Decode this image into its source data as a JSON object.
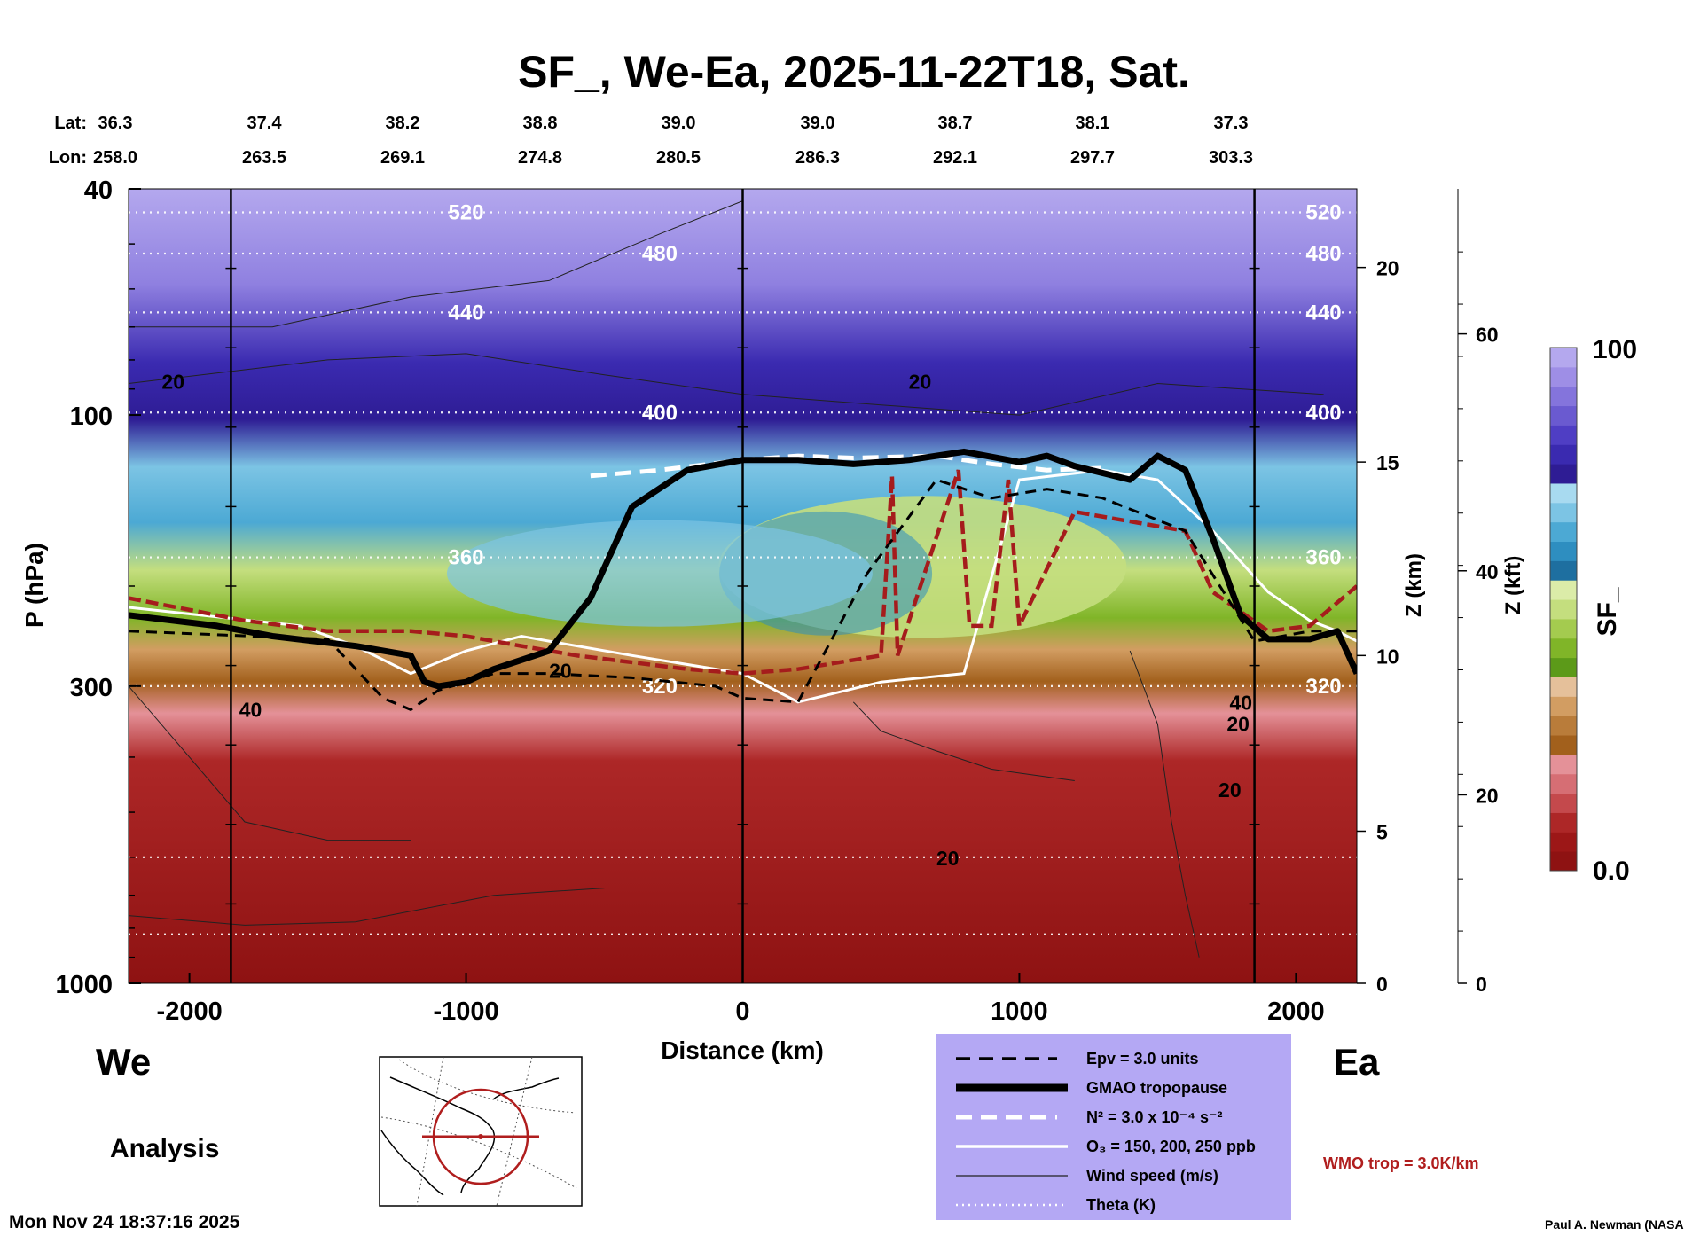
{
  "chart_data": {
    "type": "heatmap",
    "title": "SF_, We-Ea, 2025-11-22T18, Sat.",
    "xlabel": "Distance (km)",
    "ylabel": "P (hPa)",
    "ylabel_right_km": "Z (km)",
    "ylabel_right_kft": "Z (kft)",
    "xlim": [
      -2220,
      2220
    ],
    "ylim": [
      1000,
      40
    ],
    "yscale": "log",
    "x_ticks": [
      {
        "value": -2000,
        "label": "-2000"
      },
      {
        "value": -1000,
        "label": "-1000"
      },
      {
        "value": 0,
        "label": "0"
      },
      {
        "value": 1000,
        "label": "1000"
      },
      {
        "value": 2000,
        "label": "2000"
      }
    ],
    "y_ticks": [
      {
        "value": 40,
        "label": "40"
      },
      {
        "value": 100,
        "label": "100"
      },
      {
        "value": 300,
        "label": "300"
      },
      {
        "value": 1000,
        "label": "1000"
      }
    ],
    "z_km_ticks": [
      {
        "p": 1000,
        "label": "0"
      },
      {
        "p": 540,
        "label": "5"
      },
      {
        "p": 265,
        "label": "10"
      },
      {
        "p": 121,
        "label": "15"
      },
      {
        "p": 55,
        "label": "20"
      }
    ],
    "z_kft_ticks": [
      {
        "p": 1000,
        "label": "0"
      },
      {
        "p": 466,
        "label": "20"
      },
      {
        "p": 188,
        "label": "40"
      },
      {
        "p": 72,
        "label": "60"
      }
    ],
    "latlon": {
      "lat_label": "Lat:",
      "lon_label": "Lon:",
      "lat": [
        "36.3",
        "37.4",
        "38.2",
        "38.8",
        "39.0",
        "39.0",
        "38.7",
        "38.1",
        "37.3"
      ],
      "lon": [
        "258.0",
        "263.5",
        "269.1",
        "274.8",
        "280.5",
        "286.3",
        "292.1",
        "297.7",
        "303.3"
      ]
    },
    "colorbar": {
      "label": "SF_",
      "min_label": "0.0",
      "max_label": "100",
      "colors": [
        "#8e1212",
        "#9c1717",
        "#ad2727",
        "#c4494c",
        "#d66e74",
        "#e49198",
        "#a2601c",
        "#b97c3a",
        "#d29d62",
        "#e5c09a",
        "#5c9a19",
        "#80b528",
        "#a4cb4f",
        "#c4de7e",
        "#dbeca8",
        "#1e6fa0",
        "#2e8ec0",
        "#4ca9d4",
        "#7cc4e4",
        "#a8daf0",
        "#2e1c94",
        "#3a2ab0",
        "#4f3ec4",
        "#6a5ad0",
        "#8474dc",
        "#9e8ee6",
        "#b4a8ee"
      ]
    },
    "series": [
      {
        "name": "Epv = 3.0 units",
        "style": "black dashed",
        "x": [
          -2220,
          -1500,
          -1300,
          -1200,
          -1100,
          -900,
          -700,
          -400,
          -100,
          0,
          200,
          450,
          700,
          900,
          1100,
          1300,
          1600,
          1850,
          2050,
          2220
        ],
        "p": [
          240,
          248,
          315,
          330,
          305,
          285,
          285,
          290,
          300,
          315,
          320,
          190,
          130,
          140,
          135,
          140,
          160,
          250,
          240,
          240
        ]
      },
      {
        "name": "GMAO tropopause",
        "style": "black thick",
        "x": [
          -2220,
          -1900,
          -1700,
          -1400,
          -1200,
          -1150,
          -1100,
          -1000,
          -900,
          -700,
          -550,
          -400,
          -200,
          0,
          200,
          400,
          600,
          800,
          1000,
          1100,
          1200,
          1400,
          1500,
          1600,
          1700,
          1800,
          1900,
          2050,
          2150,
          2220
        ],
        "p": [
          225,
          235,
          245,
          255,
          265,
          295,
          300,
          295,
          280,
          260,
          210,
          145,
          125,
          120,
          120,
          122,
          120,
          116,
          121,
          118,
          123,
          130,
          118,
          125,
          165,
          225,
          248,
          248,
          240,
          285
        ]
      },
      {
        "name": "N² = 3.0 x 10⁻⁴ s⁻²",
        "style": "white dashed",
        "x": [
          -550,
          -300,
          0,
          200,
          400,
          700,
          900,
          1100,
          1300
        ],
        "p": [
          128,
          125,
          120,
          118,
          119,
          118,
          122,
          125,
          124
        ]
      },
      {
        "name": "O₃ = 150, 200, 250 ppb",
        "style": "white solid",
        "x": [
          -2220,
          -1600,
          -1400,
          -1200,
          -1000,
          -800,
          -700,
          -400,
          0,
          200,
          500,
          800,
          1000,
          1300,
          1500,
          1700,
          1900,
          2050,
          2150,
          2220
        ],
        "p": [
          218,
          235,
          255,
          285,
          260,
          245,
          250,
          265,
          285,
          320,
          295,
          285,
          130,
          125,
          130,
          160,
          205,
          230,
          240,
          250
        ]
      },
      {
        "name": "Wind speed (m/s)",
        "style": "thin black",
        "contour_labels": [
          "20",
          "20",
          "20",
          "20",
          "20",
          "20",
          "40",
          "40"
        ]
      },
      {
        "name": "Theta (K)",
        "style": "white dotted",
        "levels": [
          {
            "value": 520,
            "label": "520",
            "p": 44
          },
          {
            "value": 480,
            "label": "480",
            "p": 52
          },
          {
            "value": 440,
            "label": "440",
            "p": 66
          },
          {
            "value": 400,
            "label": "400",
            "p": 99
          },
          {
            "value": 360,
            "label": "360",
            "p": 178
          },
          {
            "value": 320,
            "label": "320",
            "p": 300
          }
        ]
      },
      {
        "name": "WMO trop = 3.0K/km",
        "style": "dark red dashed",
        "x": [
          -2220,
          -1800,
          -1500,
          -1200,
          -1000,
          -800,
          -600,
          -200,
          0,
          200,
          500,
          540,
          560,
          780,
          820,
          900,
          960,
          1000,
          1200,
          1600,
          1700,
          1900,
          2050,
          2220
        ],
        "p": [
          210,
          230,
          240,
          240,
          245,
          255,
          265,
          280,
          285,
          280,
          265,
          128,
          265,
          125,
          235,
          235,
          130,
          235,
          148,
          160,
          205,
          240,
          235,
          200
        ]
      }
    ],
    "vertical_lines_km": [
      -1850,
      0,
      1850
    ],
    "annotations": [
      "We",
      "Ea",
      "Analysis"
    ]
  },
  "legend": {
    "items": [
      {
        "label": "Epv = 3.0 units",
        "style": "dashed"
      },
      {
        "label": "GMAO tropopause",
        "style": "thick"
      },
      {
        "label": "N² = 3.0 x 10⁻⁴ s⁻²",
        "style": "white-dashed"
      },
      {
        "label": "O₃ = 150, 200, 250 ppb",
        "style": "white-solid"
      },
      {
        "label": "Wind speed (m/s)",
        "style": "thin"
      },
      {
        "label": "Theta (K)",
        "style": "dotted"
      }
    ],
    "wmo_label": "WMO trop = 3.0K/km",
    "wmo_color": "#b01e1e",
    "background": "#b4a8f4"
  },
  "footer": {
    "timestamp": "Mon Nov 24 18:37:16 2025",
    "credit": "Paul A. Newman (NASA"
  }
}
